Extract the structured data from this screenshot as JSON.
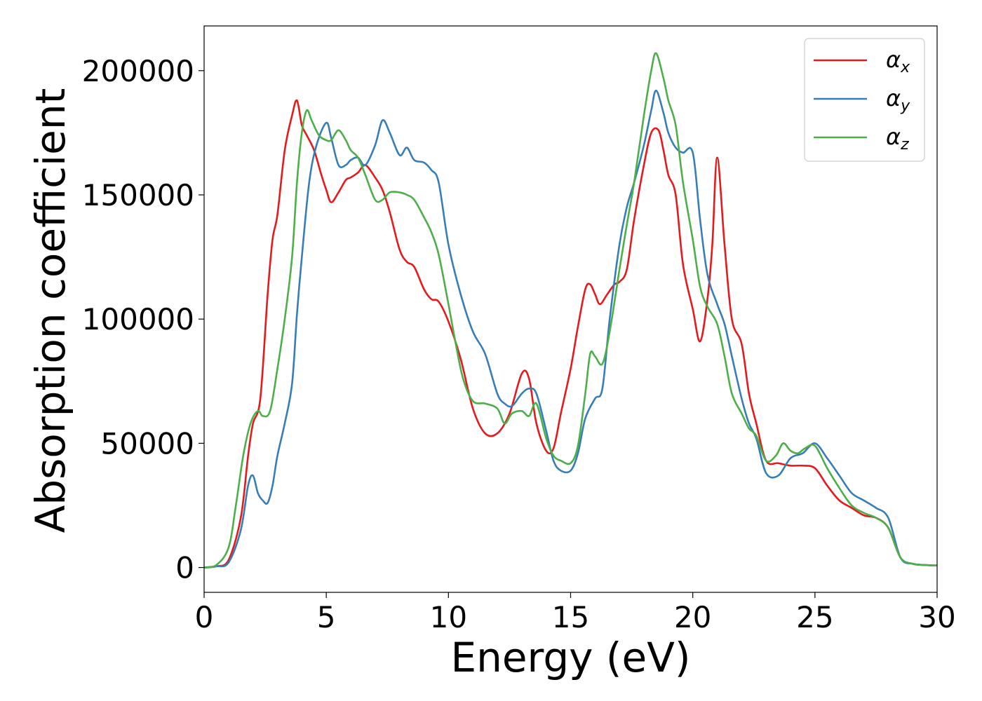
{
  "chart_data": {
    "type": "line",
    "title": "",
    "xlabel": "Energy (eV)",
    "ylabel": "Absorption coefficient",
    "xlim": [
      0,
      30
    ],
    "ylim": [
      -10000,
      218000
    ],
    "xticks": [
      0,
      5,
      10,
      15,
      20,
      25,
      30
    ],
    "yticks": [
      0,
      50000,
      100000,
      150000,
      200000
    ],
    "grid": false,
    "legend_position": "top-right",
    "series": [
      {
        "name": "αx",
        "legend_base": "α",
        "legend_sub": "x",
        "color": "#e41a1c",
        "x": [
          0,
          0.5,
          1.0,
          1.5,
          1.8,
          2.0,
          2.3,
          2.6,
          2.8,
          3.0,
          3.3,
          3.6,
          3.8,
          4.0,
          4.2,
          4.5,
          4.8,
          5.0,
          5.2,
          5.5,
          5.8,
          6.0,
          6.3,
          6.6,
          7.0,
          7.3,
          7.6,
          8.0,
          8.3,
          8.6,
          9.0,
          9.3,
          9.6,
          10.0,
          10.5,
          11.0,
          11.5,
          12.0,
          12.5,
          13.0,
          13.3,
          13.6,
          14.0,
          14.3,
          14.6,
          15.0,
          15.3,
          15.6,
          15.8,
          16.0,
          16.2,
          16.5,
          16.8,
          17.0,
          17.3,
          17.6,
          18.0,
          18.3,
          18.6,
          18.8,
          19.0,
          19.3,
          19.6,
          20.0,
          20.3,
          20.6,
          20.8,
          21.0,
          21.3,
          21.6,
          22.0,
          22.3,
          22.6,
          23.0,
          23.5,
          24.0,
          24.5,
          25.0,
          25.5,
          26.0,
          26.5,
          27.0,
          27.5,
          28.0,
          28.5,
          29.0,
          29.5,
          30.0
        ],
        "values": [
          0,
          500,
          3000,
          20000,
          45000,
          58000,
          68000,
          110000,
          132000,
          142000,
          168000,
          182000,
          188000,
          178000,
          174000,
          168000,
          158000,
          152000,
          147000,
          151000,
          156000,
          157000,
          159000,
          162000,
          157000,
          152000,
          143000,
          128000,
          123000,
          121000,
          112000,
          108000,
          107000,
          99000,
          84000,
          64000,
          54000,
          54000,
          62000,
          78000,
          76000,
          58000,
          47000,
          48000,
          62000,
          80000,
          97000,
          112000,
          114000,
          110000,
          106000,
          110000,
          114000,
          115000,
          120000,
          140000,
          162000,
          175000,
          176000,
          168000,
          158000,
          150000,
          122000,
          104000,
          91000,
          108000,
          130000,
          165000,
          130000,
          100000,
          90000,
          70000,
          58000,
          43000,
          42000,
          41000,
          41000,
          40000,
          33000,
          27000,
          24000,
          21000,
          20000,
          16000,
          4000,
          1500,
          1000,
          800
        ]
      },
      {
        "name": "αy",
        "legend_base": "α",
        "legend_sub": "y",
        "color": "#377eb8",
        "x": [
          0,
          0.5,
          1.0,
          1.5,
          1.8,
          2.0,
          2.2,
          2.4,
          2.6,
          2.8,
          3.0,
          3.3,
          3.6,
          3.8,
          4.0,
          4.3,
          4.6,
          5.0,
          5.2,
          5.5,
          5.8,
          6.0,
          6.3,
          6.6,
          7.0,
          7.3,
          7.6,
          8.0,
          8.3,
          8.6,
          9.0,
          9.3,
          9.6,
          10.0,
          10.5,
          11.0,
          11.5,
          12.0,
          12.3,
          12.6,
          13.0,
          13.3,
          13.6,
          14.0,
          14.3,
          14.6,
          15.0,
          15.3,
          15.6,
          16.0,
          16.3,
          16.6,
          17.0,
          17.3,
          17.6,
          18.0,
          18.3,
          18.5,
          18.8,
          19.0,
          19.3,
          19.6,
          20.0,
          20.3,
          20.6,
          21.0,
          21.3,
          21.6,
          22.0,
          22.3,
          22.6,
          23.0,
          23.5,
          24.0,
          24.5,
          25.0,
          25.5,
          26.0,
          26.5,
          27.0,
          27.5,
          28.0,
          28.5,
          29.0,
          29.5,
          30.0
        ],
        "values": [
          0,
          500,
          2000,
          15000,
          33000,
          37000,
          30000,
          27000,
          26000,
          33000,
          45000,
          58000,
          74000,
          102000,
          125000,
          155000,
          170000,
          179000,
          173000,
          162000,
          162000,
          164000,
          165000,
          162000,
          170000,
          180000,
          175000,
          166000,
          169000,
          164000,
          163000,
          160000,
          155000,
          130000,
          110000,
          95000,
          86000,
          70000,
          66000,
          65000,
          70000,
          72000,
          70000,
          55000,
          43000,
          39000,
          39000,
          46000,
          60000,
          68000,
          72000,
          100000,
          130000,
          145000,
          155000,
          170000,
          184000,
          192000,
          183000,
          175000,
          169000,
          167000,
          167000,
          140000,
          118000,
          106000,
          98000,
          85000,
          68000,
          58000,
          52000,
          38000,
          37000,
          44000,
          46000,
          50000,
          44000,
          37000,
          30000,
          27000,
          24000,
          20000,
          4000,
          1500,
          1000,
          800
        ]
      },
      {
        "name": "αz",
        "legend_base": "α",
        "legend_sub": "z",
        "color": "#4daf4a",
        "x": [
          0,
          0.5,
          1.0,
          1.3,
          1.6,
          1.9,
          2.2,
          2.4,
          2.7,
          3.0,
          3.3,
          3.6,
          3.8,
          4.0,
          4.2,
          4.4,
          4.7,
          5.0,
          5.2,
          5.5,
          5.8,
          6.0,
          6.3,
          6.6,
          7.0,
          7.3,
          7.6,
          8.0,
          8.3,
          8.6,
          9.0,
          9.3,
          9.6,
          10.0,
          10.3,
          10.6,
          11.0,
          11.5,
          12.0,
          12.3,
          12.6,
          13.0,
          13.3,
          13.6,
          14.0,
          14.3,
          14.6,
          15.0,
          15.3,
          15.6,
          15.8,
          16.0,
          16.3,
          16.6,
          17.0,
          17.3,
          17.6,
          18.0,
          18.3,
          18.5,
          18.8,
          19.0,
          19.3,
          19.6,
          20.0,
          20.3,
          20.6,
          21.0,
          21.3,
          21.6,
          22.0,
          22.3,
          22.6,
          23.0,
          23.4,
          23.7,
          24.0,
          24.3,
          24.6,
          25.0,
          25.5,
          26.0,
          26.5,
          27.0,
          27.5,
          28.0,
          28.5,
          29.0,
          29.5,
          30.0
        ],
        "values": [
          0,
          1000,
          8000,
          25000,
          45000,
          58000,
          63000,
          61000,
          63000,
          80000,
          100000,
          125000,
          155000,
          175000,
          184000,
          180000,
          174000,
          172000,
          172000,
          176000,
          172000,
          168000,
          165000,
          158000,
          148000,
          148000,
          151000,
          151000,
          150000,
          148000,
          141000,
          135000,
          126000,
          106000,
          90000,
          76000,
          67000,
          66000,
          64000,
          58000,
          62000,
          63000,
          61000,
          66000,
          52000,
          45000,
          43000,
          42000,
          49000,
          70000,
          86000,
          85000,
          82000,
          95000,
          120000,
          138000,
          155000,
          182000,
          200000,
          207000,
          197000,
          188000,
          178000,
          155000,
          132000,
          113000,
          105000,
          98000,
          85000,
          70000,
          62000,
          56000,
          53000,
          43000,
          45000,
          50000,
          47000,
          46000,
          48000,
          49000,
          40000,
          32000,
          25000,
          22000,
          20000,
          16000,
          4000,
          1500,
          1000,
          800
        ]
      }
    ]
  }
}
